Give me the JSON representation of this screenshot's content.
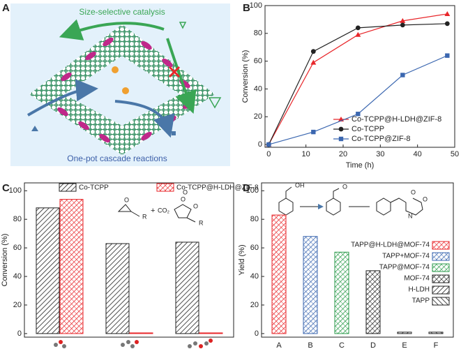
{
  "panel_labels": [
    "A",
    "B",
    "C",
    "D"
  ],
  "diagram": {
    "top_text": "Size-selective catalysis",
    "bottom_text": "One-pot cascade reactions"
  },
  "annotations_c": [
    "+",
    "CO₂",
    "R",
    "R",
    "O",
    "O",
    "O",
    "O"
  ],
  "annotations_d": [
    "OH",
    "O",
    "O",
    "O",
    "N"
  ],
  "chart_data": [
    {
      "type": "line",
      "xlabel": "Time (h)",
      "ylabel": "Conversion (%)",
      "x": [
        0,
        12,
        24,
        36,
        48
      ],
      "xlim": [
        -1,
        50
      ],
      "xticks": [
        0,
        10,
        20,
        30,
        40,
        50
      ],
      "ylim": [
        -2,
        100
      ],
      "yticks": [
        0,
        20,
        40,
        60,
        80,
        100
      ],
      "legend": "lower right",
      "series": [
        {
          "name": "Co-TCPP@H-LDH@ZIF-8",
          "color": "#e8262a",
          "marker": "triangle",
          "values": [
            0,
            59,
            79,
            89,
            94
          ]
        },
        {
          "name": "Co-TCPP",
          "color": "#222222",
          "marker": "circle",
          "values": [
            0,
            67,
            84,
            86,
            87
          ]
        },
        {
          "name": "Co-TCPP@ZIF-8",
          "color": "#3b67b0",
          "marker": "square",
          "values": [
            0,
            9,
            22,
            50,
            64
          ]
        }
      ]
    },
    {
      "type": "grouped_bar",
      "ylabel": "Conversion (%)",
      "categories": [
        null,
        null,
        null
      ],
      "ylim": [
        -2.5,
        105.5
      ],
      "yticks": [
        0,
        20,
        40,
        60,
        80,
        100
      ],
      "legend": "top",
      "series": [
        {
          "name": "Co-TCPP",
          "color": "#222222",
          "hatch": "diagonal",
          "values": [
            88,
            63,
            64
          ]
        },
        {
          "name": "Co-TCPP@H-LDH@ZIF-8",
          "color": "#e8262a",
          "hatch": "cross",
          "values": [
            94,
            0.5,
            0.5
          ]
        }
      ]
    },
    {
      "type": "bar",
      "ylabel": "Yield (%)",
      "categories": [
        "A",
        "B",
        "C",
        "D",
        "E",
        "F"
      ],
      "values": [
        83,
        68,
        57,
        44,
        1,
        1
      ],
      "colors": [
        "#e8262a",
        "#3b67b0",
        "#2a9a4a",
        "#222222",
        "#222222",
        "#222222"
      ],
      "hatches": [
        "cross",
        "cross",
        "cross",
        "cross",
        "diagonal",
        "backdiagonal"
      ],
      "legend_labels": [
        "TAPP@H-LDH@MOF-74",
        "TAPP+MOF-74",
        "TAPP@MOF-74",
        "MOF-74",
        "H-LDH",
        "TAPP"
      ],
      "ylim": [
        -2.5,
        105.5
      ],
      "yticks": [
        0,
        20,
        40,
        60,
        80,
        100
      ],
      "legend": "right"
    }
  ]
}
